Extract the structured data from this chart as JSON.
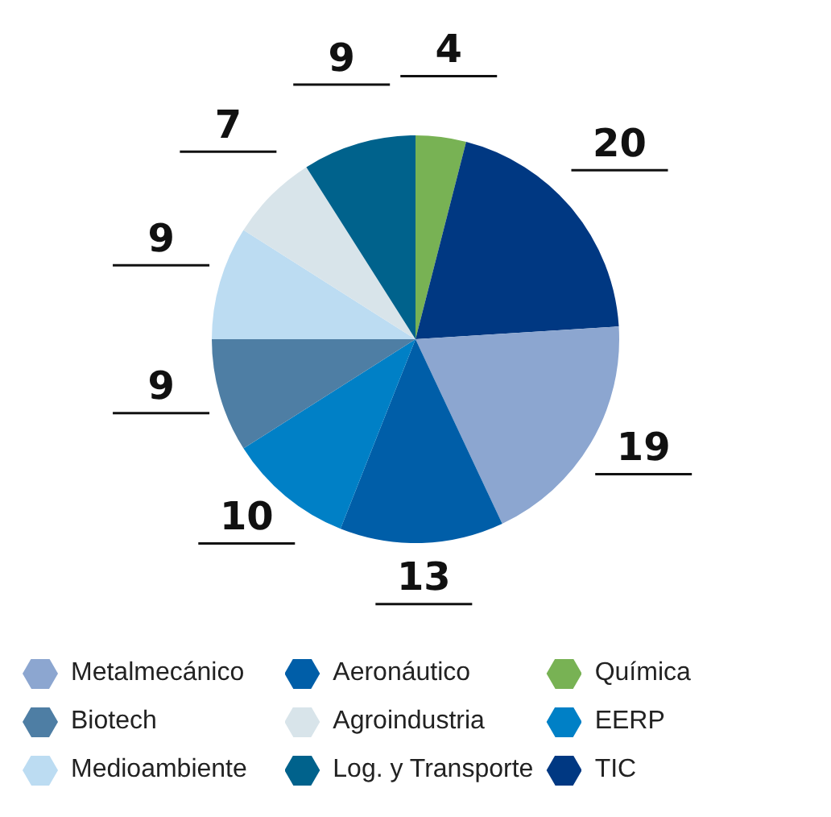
{
  "chart_data": {
    "type": "pie",
    "categories": [
      "Química",
      "TIC",
      "Metalmecánico",
      "Aeronáutico",
      "EERP",
      "Biotech",
      "Medioambiente",
      "Agroindustria",
      "Log. y Transporte"
    ],
    "values": [
      4,
      20,
      19,
      13,
      10,
      9,
      9,
      7,
      9
    ],
    "colors": [
      "#78b254",
      "#003882",
      "#8ca6d0",
      "#005ea8",
      "#0080c6",
      "#4e7ea4",
      "#bcdcf2",
      "#d8e4ea",
      "#00628c"
    ],
    "data_labels": true,
    "legend": "bottom"
  }
}
